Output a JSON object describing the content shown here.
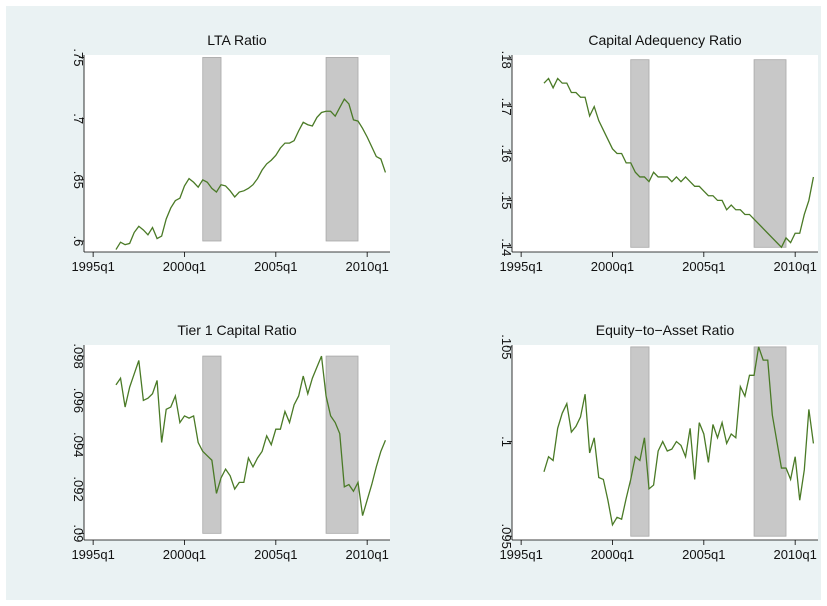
{
  "chart_data": [
    {
      "type": "line",
      "title": "LTA Ratio",
      "xlim": [
        "1994q3",
        "2011q2"
      ],
      "xticks": [
        "1995q1",
        "2000q1",
        "2005q1",
        "2010q1"
      ],
      "ylim": [
        0.591,
        0.752
      ],
      "yticks": [
        {
          "value": 0.6,
          "label": ".6"
        },
        {
          "value": 0.65,
          "label": ".65"
        },
        {
          "value": 0.7,
          "label": ".7"
        },
        {
          "value": 0.75,
          "label": ".75"
        }
      ],
      "shaded": [
        [
          "2001q1",
          "2001q4"
        ],
        [
          "2007q4",
          "2009q2"
        ]
      ],
      "series": [
        {
          "color": "#4a7a26",
          "values": [
            0.593,
            0.599,
            0.597,
            0.598,
            0.607,
            0.612,
            0.609,
            0.605,
            0.611,
            0.602,
            0.604,
            0.618,
            0.627,
            0.633,
            0.635,
            0.645,
            0.651,
            0.648,
            0.644,
            0.65,
            0.648,
            0.643,
            0.64,
            0.646,
            0.645,
            0.641,
            0.636,
            0.64,
            0.641,
            0.643,
            0.646,
            0.651,
            0.658,
            0.663,
            0.666,
            0.67,
            0.676,
            0.68,
            0.68,
            0.682,
            0.69,
            0.697,
            0.695,
            0.694,
            0.701,
            0.705,
            0.706,
            0.706,
            0.702,
            0.709,
            0.716,
            0.712,
            0.699,
            0.698,
            0.692,
            0.685,
            0.677,
            0.669,
            0.667,
            0.656
          ]
        }
      ]
    },
    {
      "type": "line",
      "title": "Capital Adequency Ratio",
      "xlim": [
        "1994q3",
        "2011q2"
      ],
      "xticks": [
        "1995q1",
        "2000q1",
        "2005q1",
        "2010q1"
      ],
      "ylim": [
        0.139,
        0.181
      ],
      "yticks": [
        {
          "value": 0.14,
          "label": ".14"
        },
        {
          "value": 0.15,
          "label": ".15"
        },
        {
          "value": 0.16,
          "label": ".16"
        },
        {
          "value": 0.17,
          "label": ".17"
        },
        {
          "value": 0.18,
          "label": ".18"
        }
      ],
      "shaded": [
        [
          "2001q1",
          "2001q4"
        ],
        [
          "2007q4",
          "2009q2"
        ]
      ],
      "series": [
        {
          "color": "#4a7a26",
          "values": [
            0.175,
            0.176,
            0.174,
            0.176,
            0.175,
            0.175,
            0.173,
            0.173,
            0.172,
            0.172,
            0.168,
            0.17,
            0.167,
            0.165,
            0.163,
            0.161,
            0.16,
            0.16,
            0.158,
            0.158,
            0.156,
            0.155,
            0.155,
            0.154,
            0.156,
            0.155,
            0.155,
            0.155,
            0.154,
            0.155,
            0.154,
            0.155,
            0.154,
            0.153,
            0.153,
            0.152,
            0.151,
            0.151,
            0.15,
            0.15,
            0.148,
            0.149,
            0.148,
            0.148,
            0.147,
            0.147,
            0.146,
            0.145,
            0.144,
            0.143,
            0.142,
            0.141,
            0.14,
            0.142,
            0.141,
            0.143,
            0.143,
            0.147,
            0.15,
            0.155
          ]
        }
      ]
    },
    {
      "type": "line",
      "title": "Tier 1 Capital Ratio",
      "xlim": [
        "1994q3",
        "2011q2"
      ],
      "xticks": [
        "1995q1",
        "2000q1",
        "2005q1",
        "2010q1"
      ],
      "ylim": [
        0.0897,
        0.0985
      ],
      "yticks": [
        {
          "value": 0.09,
          "label": ".09"
        },
        {
          "value": 0.092,
          "label": ".092"
        },
        {
          "value": 0.094,
          "label": ".094"
        },
        {
          "value": 0.096,
          "label": ".096"
        },
        {
          "value": 0.098,
          "label": ".098"
        }
      ],
      "shaded": [
        [
          "2001q1",
          "2001q4"
        ],
        [
          "2007q4",
          "2009q2"
        ]
      ],
      "series": [
        {
          "color": "#4a7a26",
          "values": [
            0.0967,
            0.097,
            0.0957,
            0.0966,
            0.0972,
            0.0978,
            0.096,
            0.0961,
            0.0963,
            0.0969,
            0.0941,
            0.0956,
            0.0957,
            0.0962,
            0.095,
            0.0953,
            0.0952,
            0.0953,
            0.0941,
            0.0937,
            0.0935,
            0.0933,
            0.0918,
            0.0925,
            0.0929,
            0.0926,
            0.092,
            0.0923,
            0.0923,
            0.0934,
            0.093,
            0.0934,
            0.0937,
            0.0944,
            0.094,
            0.0947,
            0.0947,
            0.0955,
            0.095,
            0.0958,
            0.0962,
            0.0971,
            0.0963,
            0.097,
            0.0975,
            0.098,
            0.0962,
            0.0953,
            0.095,
            0.0945,
            0.0921,
            0.0922,
            0.0919,
            0.0923,
            0.0908,
            0.0915,
            0.0922,
            0.093,
            0.0937,
            0.0942
          ]
        }
      ]
    },
    {
      "type": "line",
      "title": "Equity−to−Asset Ratio",
      "xlim": [
        "1994q3",
        "2011q2"
      ],
      "xticks": [
        "1995q1",
        "2000q1",
        "2005q1",
        "2010q1"
      ],
      "ylim": [
        0.0948,
        0.1051
      ],
      "yticks": [
        {
          "value": 0.095,
          "label": ".095"
        },
        {
          "value": 0.1,
          "label": ".1"
        },
        {
          "value": 0.105,
          "label": ".105"
        }
      ],
      "shaded": [
        [
          "2001q1",
          "2001q4"
        ],
        [
          "2007q4",
          "2009q2"
        ]
      ],
      "series": [
        {
          "color": "#4a7a26",
          "values": [
            0.0984,
            0.0992,
            0.099,
            0.1007,
            0.1015,
            0.102,
            0.1005,
            0.1008,
            0.1013,
            0.1025,
            0.0994,
            0.1002,
            0.0981,
            0.098,
            0.0969,
            0.0956,
            0.096,
            0.0959,
            0.097,
            0.098,
            0.0992,
            0.099,
            0.1002,
            0.0975,
            0.0977,
            0.0995,
            0.1,
            0.0995,
            0.0996,
            0.1,
            0.0998,
            0.0992,
            0.1007,
            0.098,
            0.101,
            0.1004,
            0.0989,
            0.1009,
            0.1002,
            0.101,
            0.0999,
            0.1004,
            0.1002,
            0.1029,
            0.1024,
            0.1035,
            0.1035,
            0.105,
            0.1043,
            0.1043,
            0.1014,
            0.1,
            0.0986,
            0.0986,
            0.098,
            0.0992,
            0.0969,
            0.0985,
            0.1017,
            0.0999
          ]
        }
      ]
    }
  ]
}
